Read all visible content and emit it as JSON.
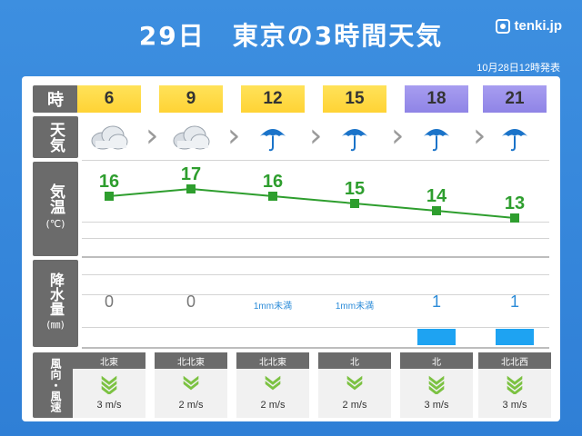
{
  "title": "29日　東京の3時間天気",
  "brand": "tenki.jp",
  "issued": "10月28日12時発表",
  "row_labels": {
    "time": "時",
    "weather": "天気",
    "temp": "気温",
    "temp_unit": "(℃)",
    "rain": "降水量",
    "rain_unit": "(㎜)",
    "wind": "風向・風速"
  },
  "times": [
    "6",
    "9",
    "12",
    "15",
    "18",
    "21"
  ],
  "weather_icons": [
    "cloud-icon",
    "cloud-icon",
    "umbrella-icon",
    "umbrella-icon",
    "umbrella-icon",
    "umbrella-icon"
  ],
  "colors": {
    "day": "#ffd335",
    "night": "#8f84e6",
    "temp_line": "#2e9e2e",
    "rain_bar": "#1ea3f2",
    "umbrella": "#1a73c9",
    "wind_arrow": "#7cc242"
  },
  "chart_data": {
    "type": "line",
    "x": [
      "6",
      "9",
      "12",
      "15",
      "18",
      "21"
    ],
    "series": [
      {
        "values": [
          16,
          17,
          16,
          15,
          14,
          13
        ]
      }
    ],
    "precipitation": {
      "type": "bar",
      "labels": [
        "0",
        "0",
        "1mm未満",
        "1mm未満",
        "1",
        "1"
      ],
      "values": [
        0,
        0,
        0.5,
        0.5,
        1,
        1
      ]
    }
  },
  "wind": [
    {
      "dir": "北東",
      "speed": "3 m/s",
      "icon": "wind-arrow-icon"
    },
    {
      "dir": "北北東",
      "speed": "2 m/s",
      "icon": "wind-arrow-icon"
    },
    {
      "dir": "北北東",
      "speed": "2 m/s",
      "icon": "wind-arrow-icon"
    },
    {
      "dir": "北",
      "speed": "2 m/s",
      "icon": "wind-arrow-icon"
    },
    {
      "dir": "北",
      "speed": "3 m/s",
      "icon": "wind-arrow-icon"
    },
    {
      "dir": "北北西",
      "speed": "3 m/s",
      "icon": "wind-arrow-icon"
    }
  ]
}
